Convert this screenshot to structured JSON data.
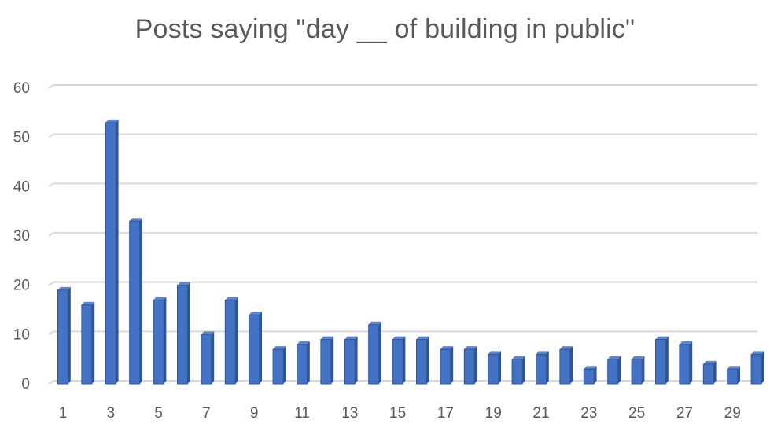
{
  "chart_data": {
    "type": "bar",
    "title": "Posts saying \"day __ of building in public\"",
    "xlabel": "",
    "ylabel": "",
    "x": [
      1,
      2,
      3,
      4,
      5,
      6,
      7,
      8,
      9,
      10,
      11,
      12,
      13,
      14,
      15,
      16,
      17,
      18,
      19,
      20,
      21,
      22,
      23,
      24,
      25,
      26,
      27,
      28,
      29,
      30
    ],
    "x_tick_labels": [
      "1",
      "3",
      "5",
      "7",
      "9",
      "11",
      "13",
      "15",
      "17",
      "19",
      "21",
      "23",
      "25",
      "27",
      "29"
    ],
    "values": [
      19,
      16,
      53,
      33,
      17,
      20,
      10,
      17,
      14,
      7,
      8,
      9,
      9,
      12,
      9,
      9,
      7,
      7,
      6,
      5,
      6,
      7,
      3,
      5,
      5,
      9,
      8,
      4,
      3,
      6
    ],
    "ylim": [
      0,
      60
    ],
    "y_ticks": [
      0,
      10,
      20,
      30,
      40,
      50,
      60
    ],
    "grid": true,
    "legend": "none",
    "bar_color": "#4472C4",
    "bar_side_color": "#2F5597",
    "bar_top_color": "#5B86D1",
    "grid_color": "#D9D9D9",
    "text_color": "#595959"
  }
}
